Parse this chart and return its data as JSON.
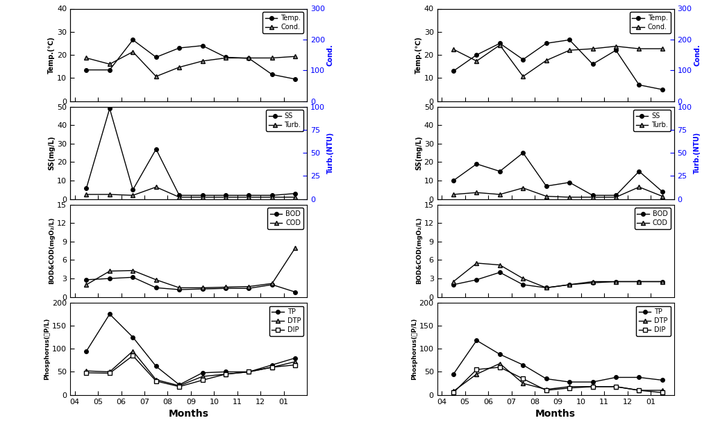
{
  "months": [
    4.5,
    5.5,
    6.5,
    7.5,
    8.5,
    9.5,
    10.5,
    11.5,
    12.5,
    13.5
  ],
  "x_ticks": [
    4,
    5,
    6,
    7,
    8,
    9,
    10,
    11,
    12,
    13
  ],
  "x_tick_labels": [
    "04",
    "05",
    "06",
    "07",
    "08",
    "09",
    "10",
    "11",
    "12",
    "01"
  ],
  "xlim": [
    3.8,
    14.0
  ],
  "left": {
    "temp": [
      13.5,
      13.5,
      26.5,
      19.0,
      23.0,
      24.0,
      19.0,
      18.5,
      11.5,
      9.5
    ],
    "cond": [
      140,
      120,
      160,
      80,
      110,
      130,
      140,
      140,
      140,
      145
    ],
    "ss": [
      6,
      49,
      5,
      27,
      2,
      2,
      2,
      2,
      2,
      3
    ],
    "turb": [
      5,
      5,
      4,
      13,
      2,
      2,
      2,
      2,
      2,
      2
    ],
    "bod": [
      2.8,
      3.0,
      3.2,
      1.5,
      1.2,
      1.3,
      1.4,
      1.4,
      2.0,
      0.8
    ],
    "cod": [
      2.0,
      4.2,
      4.3,
      2.8,
      1.5,
      1.5,
      1.6,
      1.7,
      2.2,
      8.0
    ],
    "tp": [
      95,
      175,
      125,
      62,
      22,
      48,
      50,
      50,
      65,
      80
    ],
    "dtp": [
      52,
      50,
      95,
      33,
      20,
      40,
      45,
      50,
      60,
      72
    ],
    "dip": [
      48,
      47,
      85,
      30,
      18,
      32,
      45,
      50,
      60,
      65
    ]
  },
  "right": {
    "temp": [
      13.0,
      20.0,
      25.0,
      18.0,
      25.0,
      26.5,
      16.0,
      22.0,
      7.0,
      5.0
    ],
    "cond": [
      168,
      130,
      182,
      80,
      132,
      165,
      170,
      178,
      170,
      170
    ],
    "ss": [
      10,
      19,
      15,
      25,
      7,
      9,
      2,
      2,
      15,
      4
    ],
    "turb": [
      5,
      7,
      5,
      12,
      3,
      2,
      2,
      2,
      13,
      3
    ],
    "bod": [
      2.0,
      2.8,
      4.0,
      2.0,
      1.5,
      2.0,
      2.3,
      2.5,
      2.5,
      2.5
    ],
    "cod": [
      2.5,
      5.5,
      5.2,
      3.0,
      1.5,
      2.0,
      2.5,
      2.5,
      2.5,
      2.5
    ],
    "tp": [
      45,
      118,
      88,
      65,
      35,
      28,
      28,
      38,
      38,
      32
    ],
    "dtp": [
      8,
      45,
      68,
      25,
      12,
      18,
      18,
      18,
      10,
      10
    ],
    "dip": [
      5,
      55,
      60,
      35,
      10,
      15,
      18,
      18,
      10,
      5
    ]
  },
  "p1_ylim": [
    0,
    40
  ],
  "p1_yticks": [
    0,
    10,
    20,
    30,
    40
  ],
  "p1_y2lim": [
    0,
    300
  ],
  "p1_y2ticks": [
    0,
    100,
    200,
    300
  ],
  "p2_ylim": [
    0,
    50
  ],
  "p2_yticks": [
    0,
    10,
    20,
    30,
    40,
    50
  ],
  "p2_y2lim": [
    0,
    100
  ],
  "p2_y2ticks": [
    0,
    25,
    50,
    75,
    100
  ],
  "p3_ylim": [
    0,
    15
  ],
  "p3_yticks": [
    0,
    3,
    6,
    9,
    12,
    15
  ],
  "p4_ylim": [
    0,
    200
  ],
  "p4_yticks": [
    0,
    50,
    100,
    150,
    200
  ]
}
